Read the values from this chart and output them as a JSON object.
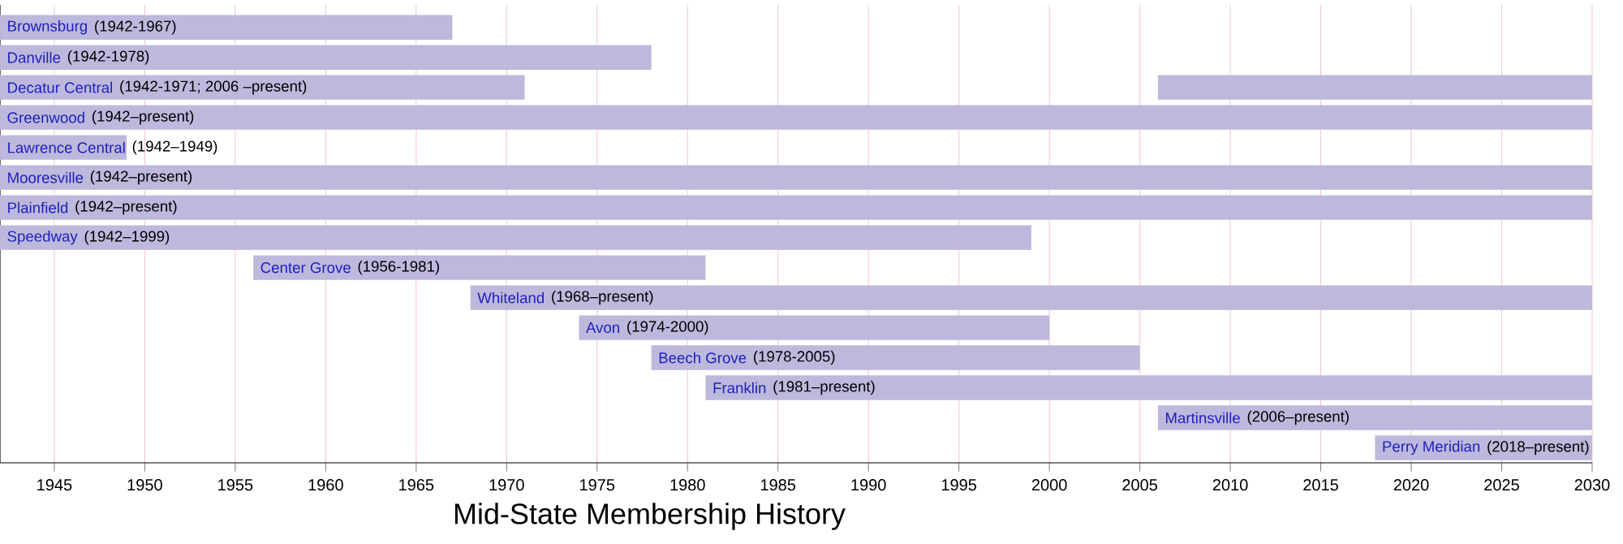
{
  "chart_data": {
    "type": "bar",
    "orientation": "horizontal",
    "title": "Mid-State Membership History",
    "categories": [
      "Brownsburg",
      "Danville",
      "Decatur Central",
      "Greenwood",
      "Lawrence Central",
      "Mooresville",
      "Plainfield",
      "Speedway",
      "Center Grove",
      "Whiteland",
      "Avon",
      "Beech Grove",
      "Franklin",
      "Martinsville",
      "Perry Meridian"
    ],
    "series": [
      {
        "color": "#bcb9dd",
        "base": [
          1942,
          1942,
          1942,
          1942,
          1942,
          1942,
          1942,
          1942,
          1956,
          1968,
          1974,
          1978,
          1981,
          2006,
          2018
        ],
        "values": [
          25,
          36,
          29,
          88,
          7,
          88,
          88,
          57,
          25,
          62,
          26,
          27,
          49,
          24,
          12
        ]
      },
      {
        "color": "#bcb9dd",
        "base": [
          null,
          null,
          2006,
          null,
          null,
          null,
          null,
          null,
          null,
          null,
          null,
          null,
          null,
          null,
          null
        ],
        "values": [
          null,
          null,
          24,
          null,
          null,
          null,
          null,
          null,
          null,
          null,
          null,
          null,
          null,
          null,
          null
        ]
      }
    ],
    "annotations": [
      "(1942-1967)",
      "(1942-1978)",
      "(1942-1971; 2006 –present)",
      "(1942–present)",
      "(1942–1949)",
      "(1942–present)",
      "(1942–present)",
      "(1942–1999)",
      "(1956-1981)",
      "(1968–present)",
      "(1974-2000)",
      "(1978-2005)",
      "(1981–present)",
      "(2006–present)",
      "(2018–present)"
    ],
    "xlim": [
      1942,
      2030
    ],
    "xticks": [
      1945,
      1950,
      1955,
      1960,
      1965,
      1970,
      1975,
      1980,
      1985,
      1990,
      1995,
      2000,
      2005,
      2010,
      2015,
      2020,
      2025,
      2030
    ],
    "grid": "x"
  }
}
